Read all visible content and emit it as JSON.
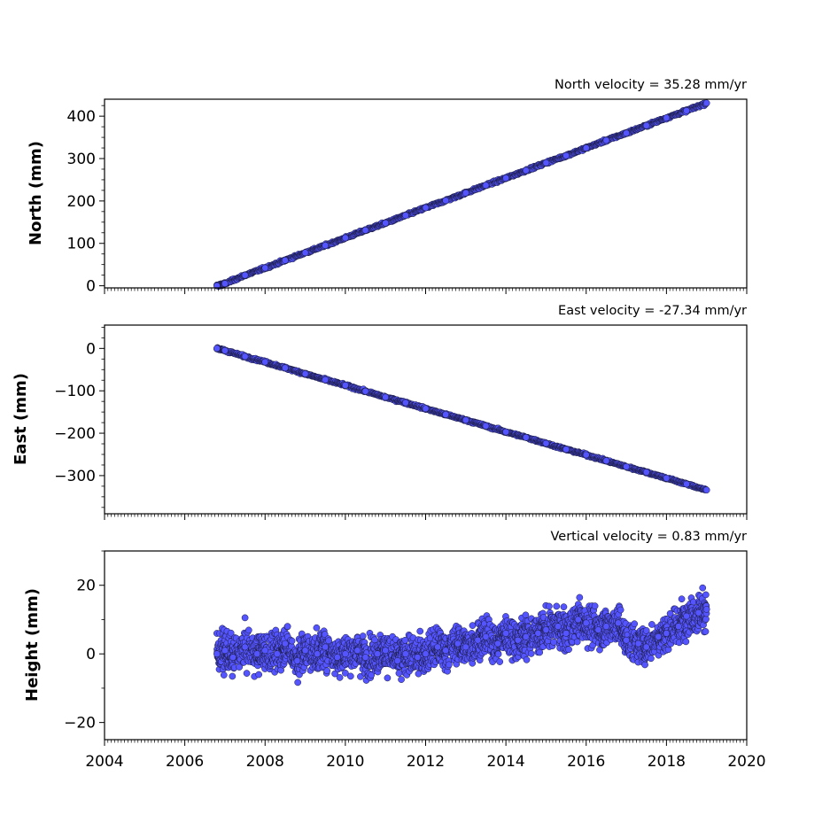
{
  "chart_data": [
    {
      "type": "scatter",
      "title": "North velocity = 35.28 mm/yr",
      "xlabel": "",
      "ylabel": "North (mm)",
      "xlim": [
        2004,
        2020
      ],
      "ylim": [
        -5,
        440
      ],
      "yticks": [
        0,
        100,
        200,
        300,
        400
      ],
      "ytick_labels": [
        "0",
        "100",
        "200",
        "300",
        "400"
      ],
      "series": [
        {
          "marker_color": "#5555ff",
          "x": [
            2006.8,
            2007.0,
            2007.5,
            2008.0,
            2008.5,
            2009.0,
            2009.5,
            2010.0,
            2010.5,
            2011.0,
            2011.5,
            2012.0,
            2012.5,
            2013.0,
            2013.5,
            2014.0,
            2014.5,
            2015.0,
            2015.5,
            2016.0,
            2016.5,
            2017.0,
            2017.5,
            2018.0,
            2018.5,
            2019.0
          ],
          "y": [
            0,
            5,
            25,
            42,
            60,
            78,
            95,
            113,
            131,
            148,
            166,
            184,
            201,
            219,
            237,
            254,
            272,
            290,
            307,
            325,
            343,
            360,
            378,
            396,
            413,
            431
          ]
        }
      ]
    },
    {
      "type": "scatter",
      "title": "East velocity = -27.34 mm/yr",
      "xlabel": "",
      "ylabel": "East (mm)",
      "xlim": [
        2004,
        2020
      ],
      "ylim": [
        -390,
        55
      ],
      "yticks": [
        0,
        -100,
        -200,
        -300
      ],
      "ytick_labels": [
        "0",
        "−100",
        "−200",
        "−300"
      ],
      "series": [
        {
          "marker_color": "#5555ff",
          "x": [
            2006.8,
            2007.0,
            2007.5,
            2008.0,
            2008.5,
            2009.0,
            2009.5,
            2010.0,
            2010.5,
            2011.0,
            2011.5,
            2012.0,
            2012.5,
            2013.0,
            2013.5,
            2014.0,
            2014.5,
            2015.0,
            2015.5,
            2016.0,
            2016.5,
            2017.0,
            2017.5,
            2018.0,
            2018.5,
            2019.0
          ],
          "y": [
            0,
            -5,
            -19,
            -32,
            -46,
            -60,
            -74,
            -87,
            -101,
            -115,
            -128,
            -142,
            -156,
            -169,
            -183,
            -197,
            -210,
            -224,
            -238,
            -251,
            -265,
            -279,
            -292,
            -306,
            -320,
            -334
          ]
        }
      ]
    },
    {
      "type": "scatter",
      "title": "Vertical velocity = 0.83 mm/yr",
      "xlabel": "",
      "ylabel": "Height (mm)",
      "xlim": [
        2004,
        2020
      ],
      "ylim": [
        -25,
        30
      ],
      "xticks": [
        2004,
        2006,
        2008,
        2010,
        2012,
        2014,
        2016,
        2018,
        2020
      ],
      "xtick_labels": [
        "2004",
        "2006",
        "2008",
        "2010",
        "2012",
        "2014",
        "2016",
        "2018",
        "2020"
      ],
      "yticks": [
        20,
        0,
        -20
      ],
      "ytick_labels": [
        "20",
        "0",
        "−20"
      ],
      "series": [
        {
          "marker_color": "#5555ff",
          "x": [
            2006.8,
            2007.0,
            2007.2,
            2007.5,
            2007.8,
            2008.0,
            2008.3,
            2008.5,
            2008.8,
            2009.0,
            2009.3,
            2009.5,
            2009.8,
            2010.0,
            2010.3,
            2010.5,
            2010.8,
            2011.0,
            2011.3,
            2011.5,
            2011.8,
            2012.0,
            2012.3,
            2012.5,
            2012.8,
            2013.0,
            2013.3,
            2013.5,
            2013.8,
            2014.0,
            2014.3,
            2014.5,
            2014.8,
            2015.0,
            2015.3,
            2015.5,
            2015.8,
            2016.0,
            2016.3,
            2016.5,
            2016.8,
            2017.0,
            2017.3,
            2017.5,
            2017.8,
            2018.0,
            2018.3,
            2018.5,
            2018.8,
            2019.0
          ],
          "y": [
            0,
            1,
            -1,
            2,
            0,
            1,
            0,
            3,
            -2,
            1,
            0,
            2,
            -1,
            0,
            1,
            -1,
            0,
            1,
            -2,
            0,
            -1,
            0,
            2,
            1,
            3,
            2,
            4,
            5,
            3,
            6,
            4,
            5,
            6,
            7,
            8,
            6,
            10,
            9,
            7,
            8,
            9,
            4,
            3,
            2,
            5,
            6,
            8,
            11,
            12,
            13
          ]
        }
      ]
    }
  ]
}
